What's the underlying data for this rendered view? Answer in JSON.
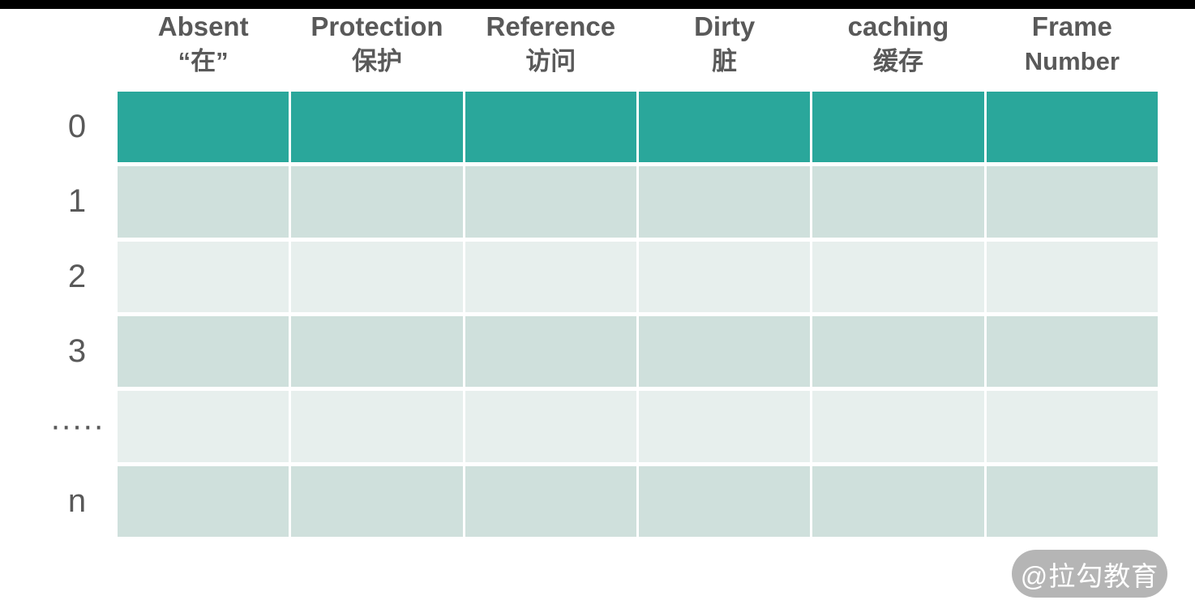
{
  "page": {
    "background": "#FFFFFF",
    "top_bar_color": "#000000"
  },
  "page_table": {
    "text_color": "#595959",
    "columns_count": 6,
    "headers": [
      {
        "line1": "Absent",
        "line2": "“在”"
      },
      {
        "line1": "Protection",
        "line2": "保护"
      },
      {
        "line1": "Reference",
        "line2": "访问"
      },
      {
        "line1": "Dirty",
        "line2": "脏"
      },
      {
        "line1": "caching",
        "line2": "缓存"
      },
      {
        "line1": "Frame",
        "line2": "Number"
      }
    ],
    "row_labels": [
      "0",
      "1",
      "2",
      "3",
      "·····",
      "n"
    ],
    "rows": [
      {
        "fill": "#2AA79B"
      },
      {
        "fill": "#CFE0DC"
      },
      {
        "fill": "#E7EFED"
      },
      {
        "fill": "#CFE0DC"
      },
      {
        "fill": "#E7EFED"
      },
      {
        "fill": "#CFE0DC"
      }
    ],
    "colors": {
      "highlight_row": "#2AA79B",
      "band_dark": "#CFE0DC",
      "band_light": "#E7EFED"
    }
  },
  "watermark": {
    "label": "@拉勾教育",
    "background": "#B5B5B5",
    "text_color": "#FFFFFF"
  }
}
